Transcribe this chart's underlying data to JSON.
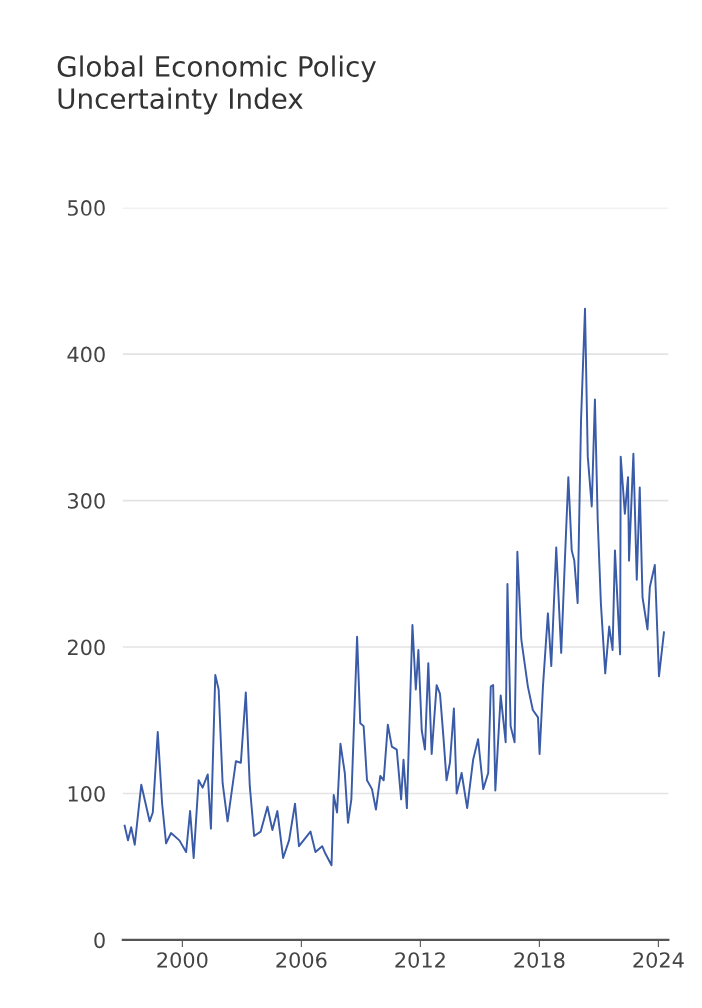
{
  "chart_data": {
    "type": "line",
    "title": "Global Economic Policy\nUncertainty Index",
    "series": [
      {
        "color": "#3a5ba8",
        "x": [
          1997.09,
          1997.26,
          1997.42,
          1997.6,
          1997.93,
          1998.35,
          1998.51,
          1998.76,
          1998.98,
          1999.18,
          1999.43,
          1999.85,
          2000.19,
          2000.39,
          2000.57,
          2000.82,
          2001.02,
          2001.28,
          2001.44,
          2001.66,
          2001.83,
          2002.03,
          2002.28,
          2002.7,
          2002.95,
          2003.2,
          2003.4,
          2003.62,
          2003.95,
          2004.29,
          2004.54,
          2004.79,
          2005.08,
          2005.38,
          2005.68,
          2005.88,
          2006.46,
          2006.71,
          2007.05,
          2007.21,
          2007.52,
          2007.63,
          2007.8,
          2007.97,
          2008.19,
          2008.35,
          2008.52,
          2008.81,
          2008.97,
          2009.14,
          2009.31,
          2009.56,
          2009.76,
          2009.98,
          2010.15,
          2010.36,
          2010.56,
          2010.81,
          2011.03,
          2011.15,
          2011.32,
          2011.6,
          2011.77,
          2011.9,
          2012.07,
          2012.23,
          2012.4,
          2012.57,
          2012.82,
          2012.99,
          2013.16,
          2013.32,
          2013.49,
          2013.69,
          2013.83,
          2014.08,
          2014.36,
          2014.66,
          2014.91,
          2015.17,
          2015.42,
          2015.55,
          2015.67,
          2015.78,
          2016.05,
          2016.3,
          2016.39,
          2016.55,
          2016.75,
          2016.89,
          2017.09,
          2017.42,
          2017.67,
          2017.93,
          2018.01,
          2018.18,
          2018.43,
          2018.6,
          2018.85,
          2019.1,
          2019.3,
          2019.46,
          2019.63,
          2019.76,
          2019.93,
          2020.1,
          2020.3,
          2020.44,
          2020.64,
          2020.8,
          2020.94,
          2021.1,
          2021.32,
          2021.52,
          2021.69,
          2021.81,
          2022.07,
          2022.1,
          2022.31,
          2022.47,
          2022.52,
          2022.74,
          2022.91,
          2023.06,
          2023.2,
          2023.45,
          2023.57,
          2023.82,
          2024.03,
          2024.28
        ],
        "values": [
          78,
          68,
          77,
          65,
          106,
          81,
          87,
          142,
          93,
          66,
          73,
          68,
          60,
          88,
          56,
          109,
          104,
          113,
          76,
          181,
          171,
          107,
          81,
          122,
          121,
          169,
          105,
          71,
          74,
          91,
          75,
          88,
          56,
          68,
          93,
          64,
          74,
          60,
          64,
          59,
          51,
          99,
          87,
          134,
          114,
          80,
          96,
          207,
          148,
          146,
          109,
          103,
          89,
          112,
          109,
          147,
          132,
          130,
          96,
          123,
          90,
          215,
          171,
          198,
          143,
          130,
          189,
          127,
          174,
          168,
          139,
          109,
          121,
          158,
          100,
          114,
          90,
          123,
          137,
          103,
          114,
          173,
          174,
          102,
          167,
          135,
          243,
          146,
          135,
          265,
          205,
          173,
          157,
          152,
          127,
          173,
          223,
          187,
          268,
          196,
          264,
          316,
          266,
          259,
          230,
          355,
          431,
          330,
          296,
          369,
          287,
          230,
          182,
          214,
          198,
          266,
          195,
          330,
          291,
          316,
          259,
          332,
          246,
          309,
          234,
          212,
          241,
          256,
          180,
          210
        ]
      }
    ],
    "xlim": [
      1997.0,
      2024.5
    ],
    "xticks": [
      2000,
      2006,
      2012,
      2018,
      2024
    ],
    "ylim": [
      0,
      500
    ],
    "yticks": [
      0,
      100,
      200,
      300,
      400,
      500
    ],
    "grid": "y",
    "marker": "none",
    "line_style": "solid"
  }
}
